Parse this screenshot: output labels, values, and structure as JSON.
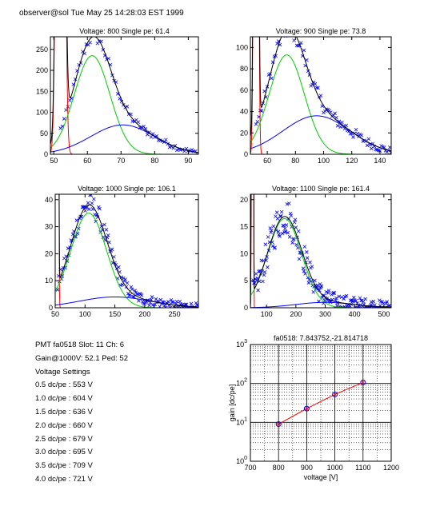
{
  "header": "observer@sol Tue May 25 14:28:03 EST 1999",
  "colors": {
    "data": "#0000ff",
    "fit": "#000000",
    "signal": "#00cc00",
    "background_fit": "#0000ff",
    "pedestal": "#ff0000",
    "gain_line": "#ff0000"
  },
  "info": {
    "line1": "PMT fa0518 Slot: 11 Ch: 6",
    "line2": "Gain@1000V: 52.1 Ped: 52",
    "title": "Voltage Settings",
    "settings": [
      "0.5 dc/pe : 553 V",
      "1.0 dc/pe : 604 V",
      "1.5 dc/pe : 636 V",
      "2.0 dc/pe : 660 V",
      "2.5 dc/pe : 679 V",
      "3.0 dc/pe : 695 V",
      "3.5 dc/pe : 709 V",
      "4.0 dc/pe : 721 V"
    ]
  },
  "chart_data": [
    {
      "type": "scatter",
      "title": "Voltage: 800 Single pe: 61.4",
      "xlim": [
        49,
        93
      ],
      "ylim": [
        0,
        280
      ],
      "xticks": [
        50,
        60,
        70,
        80,
        90
      ],
      "yticks": [
        0,
        50,
        100,
        150,
        200,
        250
      ],
      "pedestal": {
        "center": 52,
        "sigma": 0.8,
        "amp": 4000
      },
      "components": [
        {
          "name": "signal",
          "peak": 61.4,
          "amp": 235,
          "sigma": 5.3
        },
        {
          "name": "background",
          "peak": 70.5,
          "amp": 70,
          "sigma": 9.5
        }
      ],
      "scatter_x_range": [
        52,
        93
      ],
      "scatter_step": 0.55,
      "noise": 10
    },
    {
      "type": "scatter",
      "title": "Voltage: 900 Single pe: 73.8",
      "xlim": [
        48,
        148
      ],
      "ylim": [
        0,
        110
      ],
      "xticks": [
        60,
        80,
        100,
        120,
        140
      ],
      "yticks": [
        0,
        20,
        40,
        60,
        80,
        100
      ],
      "pedestal": {
        "center": 52,
        "sigma": 1.0,
        "amp": 2000
      },
      "components": [
        {
          "name": "signal",
          "peak": 73.8,
          "amp": 93,
          "sigma": 12.5
        },
        {
          "name": "background",
          "peak": 95,
          "amp": 36,
          "sigma": 24
        }
      ],
      "scatter_x_range": [
        52,
        148
      ],
      "scatter_step": 1.0,
      "noise": 6
    },
    {
      "type": "scatter",
      "title": "Voltage: 1000 Single pe: 106.1",
      "xlim": [
        50,
        290
      ],
      "ylim": [
        0,
        42
      ],
      "xticks": [
        50,
        100,
        150,
        200,
        250
      ],
      "yticks": [
        0,
        10,
        20,
        30,
        40
      ],
      "pedestal": {
        "center": 53,
        "sigma": 1.2,
        "amp": 3000
      },
      "components": [
        {
          "name": "signal",
          "peak": 106.1,
          "amp": 35,
          "sigma": 30
        },
        {
          "name": "background",
          "peak": 150,
          "amp": 4,
          "sigma": 60
        }
      ],
      "scatter_x_range": [
        54,
        290
      ],
      "scatter_step": 1.6,
      "noise": 3
    },
    {
      "type": "scatter",
      "title": "Voltage: 1100 Single pe: 161.4",
      "xlim": [
        45,
        525
      ],
      "ylim": [
        0,
        21
      ],
      "xticks": [
        100,
        200,
        300,
        400,
        500
      ],
      "yticks": [
        0,
        5,
        10,
        15,
        20
      ],
      "pedestal": {
        "center": 52,
        "sigma": 1.5,
        "amp": 2000
      },
      "components": [
        {
          "name": "signal",
          "peak": 161.4,
          "amp": 16.5,
          "sigma": 58
        },
        {
          "name": "background",
          "peak": 300,
          "amp": 1,
          "sigma": 100
        }
      ],
      "scatter_x_range": [
        55,
        520
      ],
      "scatter_step": 2.3,
      "noise": 2.5
    },
    {
      "type": "line",
      "title": "fa0518: 7.843752,-21.814718",
      "xlabel": "voltage [V]",
      "ylabel": "gain [dc/pe]",
      "xlim": [
        700,
        1200
      ],
      "ylim": [
        1,
        1000
      ],
      "yscale": "log",
      "grid": true,
      "xticks": [
        700,
        800,
        900,
        1000,
        1100,
        1200
      ],
      "yticks": [
        {
          "base": "10",
          "exp": "0",
          "value": 1
        },
        {
          "base": "10",
          "exp": "1",
          "value": 10
        },
        {
          "base": "10",
          "exp": "2",
          "value": 100
        },
        {
          "base": "10",
          "exp": "3",
          "value": 1000
        }
      ],
      "x": [
        800,
        900,
        1000,
        1100
      ],
      "y": [
        9.0,
        22.6,
        52.1,
        106.0
      ]
    }
  ]
}
